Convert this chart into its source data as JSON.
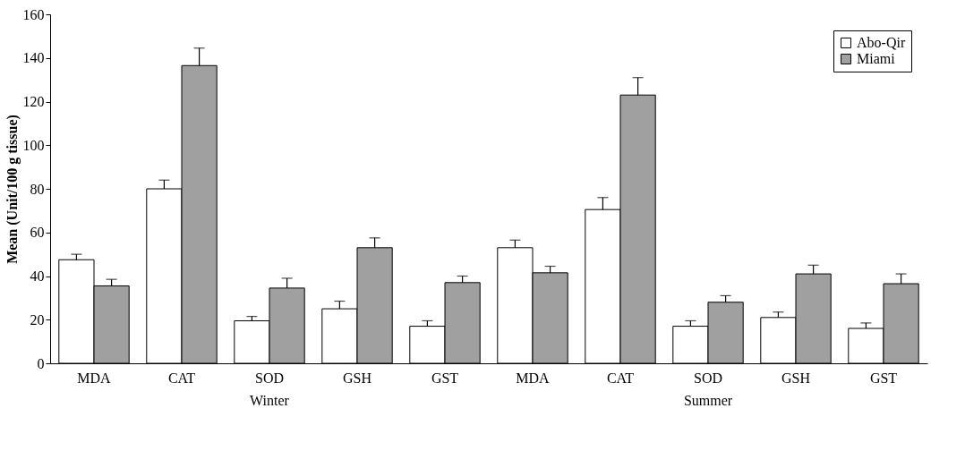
{
  "chart_data": {
    "type": "bar",
    "ylabel": "Mean (Unit/100 g tissue)",
    "categories": [
      "MDA",
      "CAT",
      "SOD",
      "GSH",
      "GST",
      "MDA",
      "CAT",
      "SOD",
      "GSH",
      "GST"
    ],
    "series": [
      {
        "name": "Abo-Qir",
        "color": "#ffffff",
        "values": [
          47.5,
          80,
          19.5,
          25,
          17,
          53,
          70.5,
          17,
          21,
          16
        ],
        "errors": [
          2.5,
          4,
          2,
          3.5,
          2.5,
          3.5,
          5.5,
          2.5,
          2.5,
          2.5
        ]
      },
      {
        "name": "Miami",
        "color": "#a0a0a0",
        "values": [
          35.5,
          136.5,
          34.5,
          53,
          37,
          41.5,
          123,
          28,
          41,
          36.5
        ],
        "errors": [
          3,
          8,
          4.5,
          4.5,
          3,
          3,
          8,
          3,
          4,
          4.5
        ]
      }
    ],
    "annotations": [
      "Winter",
      "Summer"
    ],
    "ylim": [
      0,
      160
    ],
    "yticks": [
      0,
      20,
      40,
      60,
      80,
      100,
      120,
      140,
      160
    ],
    "grid": false,
    "legend": "top right"
  }
}
